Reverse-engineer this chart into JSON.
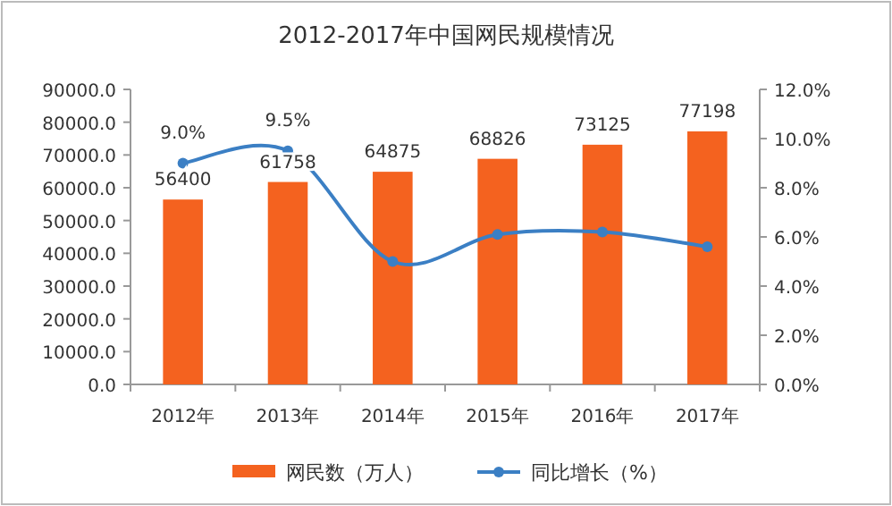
{
  "chart_data": {
    "type": "bar",
    "title": "2012-2017年中国网民规模情况",
    "categories": [
      "2012年",
      "2013年",
      "2014年",
      "2015年",
      "2016年",
      "2017年"
    ],
    "series": [
      {
        "name": "网民数（万人）",
        "color": "#f4621f",
        "values": [
          56400,
          61758,
          64875,
          68826,
          73125,
          77198
        ],
        "value_labels": [
          "56400",
          "61758",
          "64875",
          "68826",
          "73125",
          "77198"
        ]
      },
      {
        "name": "同比增长（%）",
        "type": "line",
        "axis": "y2",
        "color": "#3b7fc4",
        "marker": "circle",
        "values": [
          9.0,
          9.5,
          5.0,
          6.1,
          6.2,
          5.6
        ],
        "value_labels": [
          "9.0%",
          "9.5%",
          null,
          null,
          null,
          null
        ]
      }
    ],
    "ylim": [
      0,
      90000
    ],
    "yticks": [
      {
        "value": 0,
        "label": "0.0"
      },
      {
        "value": 10000,
        "label": "10000.0"
      },
      {
        "value": 20000,
        "label": "20000.0"
      },
      {
        "value": 30000,
        "label": "30000.0"
      },
      {
        "value": 40000,
        "label": "40000.0"
      },
      {
        "value": 50000,
        "label": "50000.0"
      },
      {
        "value": 60000,
        "label": "60000.0"
      },
      {
        "value": 70000,
        "label": "70000.0"
      },
      {
        "value": 80000,
        "label": "80000.0"
      },
      {
        "value": 90000,
        "label": "90000.0"
      }
    ],
    "y2lim": [
      0,
      12
    ],
    "y2ticks": [
      {
        "value": 0,
        "label": "0.0%"
      },
      {
        "value": 2,
        "label": "2.0%"
      },
      {
        "value": 4,
        "label": "4.0%"
      },
      {
        "value": 6,
        "label": "6.0%"
      },
      {
        "value": 8,
        "label": "8.0%"
      },
      {
        "value": 10,
        "label": "10.0%"
      },
      {
        "value": 12,
        "label": "12.0%"
      }
    ],
    "legend": "bottom"
  }
}
